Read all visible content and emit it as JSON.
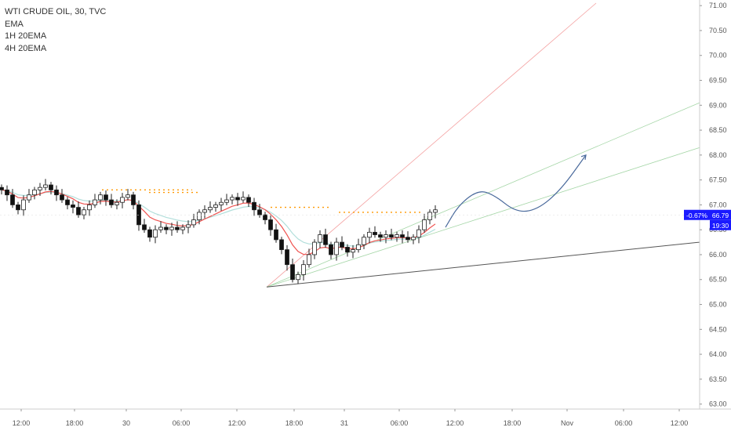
{
  "legend": {
    "symbol": "WTI CRUDE OIL, 30, TVC",
    "indicator_1": "EMA",
    "indicator_2": "1H 20EMA",
    "indicator_3": "4H 20EMA"
  },
  "price_box": {
    "change": "-0.67%",
    "price": "66.79",
    "countdown": "19:30",
    "bg_color": "#1a1aff"
  },
  "colors": {
    "ema": "#ef5350",
    "ema_1h": "#b2dfdb",
    "ema_4h": "#ff9800",
    "candle_up": "#ffffff",
    "candle_down": "#111111",
    "trendline": "#555555",
    "projection": "#4a6a9c"
  },
  "chart_data": {
    "type": "candlestick",
    "y_axis_labels": [
      "71.00",
      "70.50",
      "70.00",
      "69.50",
      "69.00",
      "68.50",
      "68.00",
      "67.50",
      "67.00",
      "66.50",
      "66.00",
      "65.50",
      "65.00",
      "64.50",
      "64.00",
      "63.50",
      "63.00"
    ],
    "x_axis_labels": [
      "12:00",
      "18:00",
      "30",
      "06:00",
      "12:00",
      "18:00",
      "31",
      "06:00",
      "12:00",
      "18:00",
      "Nov",
      "06:00",
      "12:00"
    ],
    "ylim": [
      62.9,
      71.05
    ],
    "close_series": [
      67.3,
      67.2,
      67.0,
      66.9,
      67.1,
      67.2,
      67.3,
      67.35,
      67.4,
      67.3,
      67.2,
      67.1,
      67.0,
      66.95,
      66.8,
      66.9,
      67.0,
      67.1,
      67.2,
      67.1,
      67.0,
      67.05,
      67.15,
      67.2,
      67.0,
      66.6,
      66.5,
      66.35,
      66.5,
      66.55,
      66.5,
      66.55,
      66.5,
      66.55,
      66.6,
      66.7,
      66.85,
      66.9,
      66.95,
      67.0,
      67.05,
      67.1,
      67.15,
      67.1,
      67.15,
      67.05,
      66.9,
      66.8,
      66.7,
      66.5,
      66.3,
      66.1,
      65.8,
      65.5,
      65.6,
      65.8,
      66.0,
      66.25,
      66.4,
      66.2,
      66.0,
      66.25,
      66.15,
      66.05,
      66.1,
      66.2,
      66.35,
      66.45,
      66.4,
      66.35,
      66.4,
      66.35,
      66.4,
      66.35,
      66.3,
      66.35,
      66.5,
      66.7,
      66.85,
      66.9
    ],
    "projection": [
      66.55,
      67.0,
      67.3,
      67.2,
      66.85,
      66.9,
      67.3,
      68.0
    ]
  }
}
